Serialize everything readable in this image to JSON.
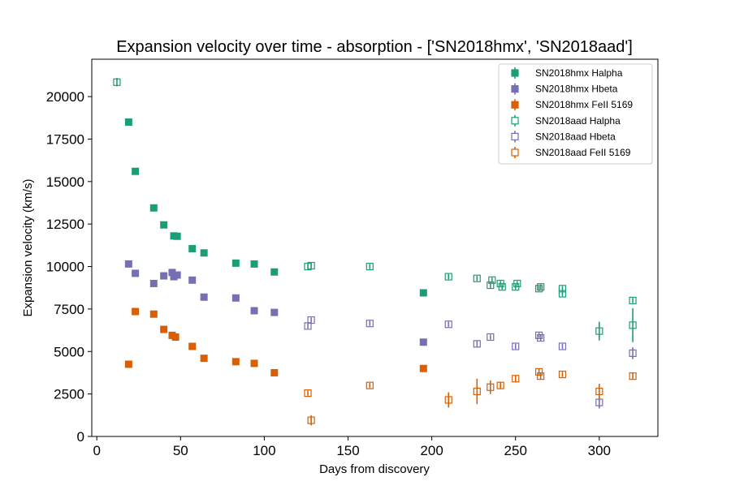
{
  "chart_data": {
    "type": "scatter",
    "title": "Expansion velocity over time - absorption - ['SN2018hmx', 'SN2018aad']",
    "xlabel": "Days from discovery",
    "ylabel": "Expansion velocity (km/s)",
    "xlim": [
      -3,
      335
    ],
    "ylim": [
      0,
      22200
    ],
    "xticks": [
      0,
      50,
      100,
      150,
      200,
      250,
      300
    ],
    "yticks": [
      0,
      2500,
      5000,
      7500,
      10000,
      12500,
      15000,
      17500,
      20000
    ],
    "legend_position": "top-right",
    "grid": false,
    "series": [
      {
        "name": "SN2018hmx Halpha",
        "color": "#1b9e77",
        "marker": "filled-square",
        "points": [
          [
            19,
            18500,
            0
          ],
          [
            23,
            15600,
            0
          ],
          [
            34,
            13450,
            0
          ],
          [
            40,
            12450,
            0
          ],
          [
            46,
            11800,
            0
          ],
          [
            48,
            11780,
            0
          ],
          [
            57,
            11050,
            0
          ],
          [
            64,
            10800,
            0
          ],
          [
            83,
            10200,
            0
          ],
          [
            94,
            10150,
            0
          ],
          [
            106,
            9680,
            0
          ],
          [
            195,
            8450,
            0
          ]
        ]
      },
      {
        "name": "SN2018hmx Hbeta",
        "color": "#7570b3",
        "marker": "filled-square",
        "points": [
          [
            19,
            10150,
            0
          ],
          [
            23,
            9600,
            0
          ],
          [
            34,
            9000,
            0
          ],
          [
            40,
            9450,
            0
          ],
          [
            45,
            9650,
            0
          ],
          [
            46,
            9400,
            0
          ],
          [
            48,
            9500,
            0
          ],
          [
            57,
            9200,
            0
          ],
          [
            64,
            8200,
            0
          ],
          [
            83,
            8150,
            0
          ],
          [
            94,
            7400,
            0
          ],
          [
            106,
            7300,
            0
          ],
          [
            195,
            5550,
            0
          ]
        ]
      },
      {
        "name": "SN2018hmx FeII 5169",
        "color": "#d95f02",
        "marker": "filled-square",
        "points": [
          [
            19,
            4250,
            0
          ],
          [
            23,
            7350,
            0
          ],
          [
            34,
            7200,
            0
          ],
          [
            40,
            6300,
            0
          ],
          [
            45,
            5950,
            0
          ],
          [
            47,
            5850,
            0
          ],
          [
            57,
            5300,
            0
          ],
          [
            64,
            4600,
            0
          ],
          [
            83,
            4400,
            0
          ],
          [
            94,
            4300,
            0
          ],
          [
            106,
            3750,
            0
          ],
          [
            195,
            4000,
            0
          ]
        ]
      },
      {
        "name": "SN2018aad Halpha",
        "color": "#1b9e77",
        "marker": "open-square",
        "points": [
          [
            12,
            20850,
            250
          ],
          [
            126,
            10000,
            150
          ],
          [
            128,
            10050,
            150
          ],
          [
            163,
            10000,
            150
          ],
          [
            210,
            9400,
            150
          ],
          [
            227,
            9300,
            150
          ],
          [
            235,
            8900,
            200
          ],
          [
            236,
            9200,
            150
          ],
          [
            241,
            9000,
            150
          ],
          [
            242,
            8800,
            150
          ],
          [
            250,
            8800,
            150
          ],
          [
            251,
            9000,
            150
          ],
          [
            264,
            8700,
            150
          ],
          [
            265,
            8800,
            150
          ],
          [
            278,
            8700,
            150
          ],
          [
            278,
            8400,
            150
          ],
          [
            300,
            6200,
            550
          ],
          [
            320,
            6550,
            1000
          ],
          [
            320,
            8000,
            150
          ]
        ]
      },
      {
        "name": "SN2018aad Hbeta",
        "color": "#7570b3",
        "marker": "open-square",
        "points": [
          [
            126,
            6500,
            150
          ],
          [
            128,
            6850,
            150
          ],
          [
            163,
            6650,
            150
          ],
          [
            210,
            6600,
            150
          ],
          [
            227,
            5450,
            200
          ],
          [
            235,
            5850,
            150
          ],
          [
            250,
            5300,
            150
          ],
          [
            264,
            5950,
            150
          ],
          [
            265,
            5800,
            200
          ],
          [
            278,
            5300,
            150
          ],
          [
            300,
            2000,
            350
          ],
          [
            320,
            4900,
            350
          ]
        ]
      },
      {
        "name": "SN2018aad FeII 5169",
        "color": "#d95f02",
        "marker": "open-square",
        "points": [
          [
            126,
            2550,
            150
          ],
          [
            128,
            950,
            300
          ],
          [
            163,
            3000,
            150
          ],
          [
            210,
            2150,
            450
          ],
          [
            227,
            2650,
            750
          ],
          [
            235,
            2900,
            400
          ],
          [
            241,
            3000,
            200
          ],
          [
            250,
            3400,
            200
          ],
          [
            264,
            3800,
            200
          ],
          [
            265,
            3550,
            200
          ],
          [
            278,
            3650,
            150
          ],
          [
            300,
            2650,
            450
          ],
          [
            320,
            3550,
            200
          ]
        ]
      }
    ]
  }
}
